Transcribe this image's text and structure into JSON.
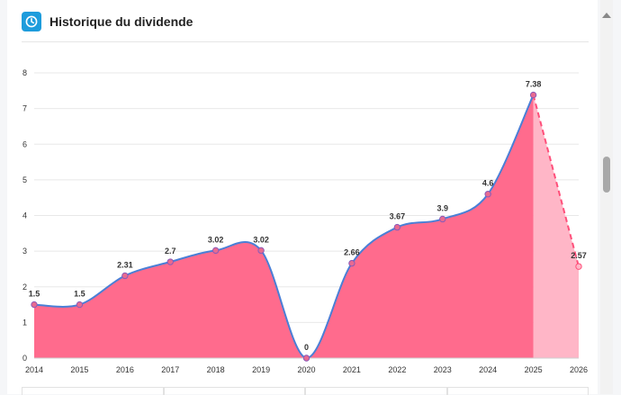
{
  "header": {
    "title": "Historique du dividende",
    "icon": "clock-icon"
  },
  "colors": {
    "fill": "#ff6b8d",
    "fill_projection": "#ffb6c7",
    "line": "#4a7fd6",
    "projection_line": "#ff4f7a",
    "icon_bg": "#1e9cdc"
  },
  "chart_data": {
    "type": "area",
    "x": [
      "2014",
      "2015",
      "2016",
      "2017",
      "2018",
      "2019",
      "2020",
      "2021",
      "2022",
      "2023",
      "2024",
      "2025",
      "2026"
    ],
    "values": [
      1.5,
      1.5,
      2.31,
      2.7,
      3.02,
      3.02,
      0,
      2.66,
      3.67,
      3.9,
      4.6,
      7.38,
      2.57
    ],
    "labels": [
      "1.5",
      "1.5",
      "2.31",
      "2.7",
      "3.02",
      "3.02",
      "0",
      "2.66",
      "3.67",
      "3.9",
      "4.6",
      "7.38",
      "2.57"
    ],
    "projected_from_index": 11,
    "ylim": [
      0,
      8
    ],
    "yticks": [
      "0",
      "1",
      "2",
      "3",
      "4",
      "5",
      "6",
      "7",
      "8"
    ],
    "grid": true,
    "xlabel": "",
    "ylabel": "",
    "title": ""
  }
}
